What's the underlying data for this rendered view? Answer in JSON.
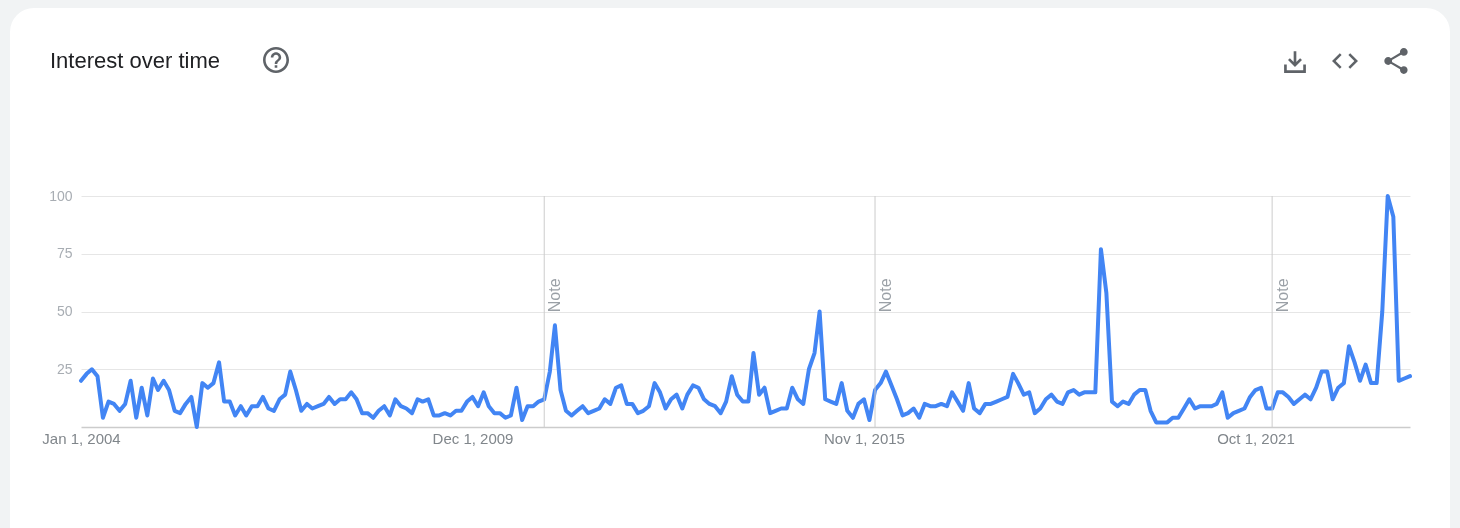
{
  "chart_data": {
    "type": "line",
    "title": "Interest over time",
    "x": [
      "2004-01",
      "2004-02",
      "2004-03",
      "2004-04",
      "2004-05",
      "2004-06",
      "2004-07",
      "2004-08",
      "2004-09",
      "2004-10",
      "2004-11",
      "2004-12",
      "2005-01",
      "2005-02",
      "2005-03",
      "2005-04",
      "2005-05",
      "2005-06",
      "2005-07",
      "2005-08",
      "2005-09",
      "2005-10",
      "2005-11",
      "2005-12",
      "2006-01",
      "2006-02",
      "2006-03",
      "2006-04",
      "2006-05",
      "2006-06",
      "2006-07",
      "2006-08",
      "2006-09",
      "2006-10",
      "2006-11",
      "2006-12",
      "2007-01",
      "2007-02",
      "2007-03",
      "2007-04",
      "2007-05",
      "2007-06",
      "2007-07",
      "2007-08",
      "2007-09",
      "2007-10",
      "2007-11",
      "2007-12",
      "2008-01",
      "2008-02",
      "2008-03",
      "2008-04",
      "2008-05",
      "2008-06",
      "2008-07",
      "2008-08",
      "2008-09",
      "2008-10",
      "2008-11",
      "2008-12",
      "2009-01",
      "2009-02",
      "2009-03",
      "2009-04",
      "2009-05",
      "2009-06",
      "2009-07",
      "2009-08",
      "2009-09",
      "2009-10",
      "2009-11",
      "2009-12",
      "2010-01",
      "2010-02",
      "2010-03",
      "2010-04",
      "2010-05",
      "2010-06",
      "2010-07",
      "2010-08",
      "2010-09",
      "2010-10",
      "2010-11",
      "2010-12",
      "2011-01",
      "2011-02",
      "2011-03",
      "2011-04",
      "2011-05",
      "2011-06",
      "2011-07",
      "2011-08",
      "2011-09",
      "2011-10",
      "2011-11",
      "2011-12",
      "2012-01",
      "2012-02",
      "2012-03",
      "2012-04",
      "2012-05",
      "2012-06",
      "2012-07",
      "2012-08",
      "2012-09",
      "2012-10",
      "2012-11",
      "2012-12",
      "2013-01",
      "2013-02",
      "2013-03",
      "2013-04",
      "2013-05",
      "2013-06",
      "2013-07",
      "2013-08",
      "2013-09",
      "2013-10",
      "2013-11",
      "2013-12",
      "2014-01",
      "2014-02",
      "2014-03",
      "2014-04",
      "2014-05",
      "2014-06",
      "2014-07",
      "2014-08",
      "2014-09",
      "2014-10",
      "2014-11",
      "2014-12",
      "2015-01",
      "2015-02",
      "2015-03",
      "2015-04",
      "2015-05",
      "2015-06",
      "2015-07",
      "2015-08",
      "2015-09",
      "2015-10",
      "2015-11",
      "2015-12",
      "2016-01",
      "2016-02",
      "2016-03",
      "2016-04",
      "2016-05",
      "2016-06",
      "2016-07",
      "2016-08",
      "2016-09",
      "2016-10",
      "2016-11",
      "2016-12",
      "2017-01",
      "2017-02",
      "2017-03",
      "2017-04",
      "2017-05",
      "2017-06",
      "2017-07",
      "2017-08",
      "2017-09",
      "2017-10",
      "2017-11",
      "2017-12",
      "2018-01",
      "2018-02",
      "2018-03",
      "2018-04",
      "2018-05",
      "2018-06",
      "2018-07",
      "2018-08",
      "2018-09",
      "2018-10",
      "2018-11",
      "2018-12",
      "2019-01",
      "2019-02",
      "2019-03",
      "2019-04",
      "2019-05",
      "2019-06",
      "2019-07",
      "2019-08",
      "2019-09",
      "2019-10",
      "2019-11",
      "2019-12",
      "2020-01",
      "2020-02",
      "2020-03",
      "2020-04",
      "2020-05",
      "2020-06",
      "2020-07",
      "2020-08",
      "2020-09",
      "2020-10",
      "2020-11",
      "2020-12",
      "2021-01",
      "2021-02",
      "2021-03",
      "2021-04",
      "2021-05",
      "2021-06",
      "2021-07",
      "2021-08",
      "2021-09",
      "2021-10",
      "2021-11",
      "2021-12",
      "2022-01",
      "2022-02",
      "2022-03",
      "2022-04",
      "2022-05",
      "2022-06",
      "2022-07",
      "2022-08",
      "2022-09",
      "2022-10",
      "2022-11",
      "2022-12",
      "2023-01",
      "2023-02",
      "2023-03",
      "2023-04",
      "2023-05",
      "2023-06",
      "2023-07",
      "2023-08",
      "2023-09",
      "2023-10",
      "2023-11",
      "2023-12",
      "2024-01",
      "2024-02"
    ],
    "series": [
      {
        "color": "#4285f4",
        "values": [
          20,
          23,
          25,
          22,
          4,
          11,
          10,
          7,
          10,
          20,
          4,
          17,
          5,
          21,
          16,
          20,
          16,
          7,
          6,
          10,
          13,
          0,
          19,
          17,
          19,
          28,
          11,
          11,
          5,
          9,
          5,
          9,
          9,
          13,
          8,
          7,
          12,
          14,
          24,
          16,
          7,
          10,
          8,
          9,
          10,
          13,
          10,
          12,
          12,
          15,
          12,
          6,
          6,
          4,
          7,
          9,
          5,
          12,
          9,
          8,
          6,
          12,
          11,
          12,
          5,
          5,
          6,
          5,
          7,
          7,
          11,
          13,
          9,
          15,
          9,
          6,
          6,
          4,
          5,
          17,
          3,
          9,
          9,
          11,
          12,
          24,
          44,
          16,
          7,
          5,
          7,
          9,
          6,
          7,
          8,
          12,
          10,
          17,
          18,
          10,
          10,
          6,
          7,
          9,
          19,
          15,
          8,
          12,
          14,
          8,
          14,
          18,
          17,
          12,
          10,
          9,
          6,
          11,
          22,
          14,
          11,
          11,
          32,
          14,
          17,
          6,
          7,
          8,
          8,
          17,
          12,
          10,
          25,
          32,
          50,
          12,
          11,
          10,
          19,
          7,
          4,
          10,
          12,
          3,
          16,
          19,
          24,
          18,
          12,
          5,
          6,
          8,
          4,
          10,
          9,
          9,
          10,
          9,
          15,
          11,
          7,
          19,
          8,
          6,
          10,
          10,
          11,
          12,
          13,
          23,
          19,
          14,
          15,
          6,
          8,
          12,
          14,
          11,
          10,
          15,
          16,
          14,
          15,
          15,
          15,
          77,
          58,
          11,
          9,
          11,
          10,
          14,
          16,
          16,
          7,
          2,
          2,
          2,
          4,
          4,
          8,
          12,
          8,
          9,
          9,
          9,
          10,
          15,
          4,
          6,
          7,
          8,
          13,
          16,
          17,
          8,
          8,
          15,
          15,
          13,
          10,
          12,
          14,
          12,
          17,
          24,
          24,
          12,
          17,
          19,
          35,
          28,
          20,
          27,
          19,
          19,
          50,
          100,
          91,
          20,
          21,
          22
        ]
      }
    ],
    "xlim": [
      "2004-01-01",
      "2024-02-01"
    ],
    "xticks": [
      {
        "value": "2004-01-01",
        "label": "Jan 1, 2004"
      },
      {
        "value": "2009-12-01",
        "label": "Dec 1, 2009"
      },
      {
        "value": "2015-11-01",
        "label": "Nov 1, 2015"
      },
      {
        "value": "2021-10-01",
        "label": "Oct 1, 2021"
      }
    ],
    "ylim": [
      0,
      100
    ],
    "yticks": [
      25,
      50,
      75,
      100
    ],
    "grid": "y",
    "ref_lines": [
      {
        "axis": "x",
        "value": "2011-01-01",
        "label": "Note",
        "color": "#cccccc"
      },
      {
        "axis": "x",
        "value": "2016-01-01",
        "label": "Note",
        "color": "#cccccc"
      },
      {
        "axis": "x",
        "value": "2022-01-01",
        "label": "Note",
        "color": "#cccccc"
      }
    ]
  }
}
